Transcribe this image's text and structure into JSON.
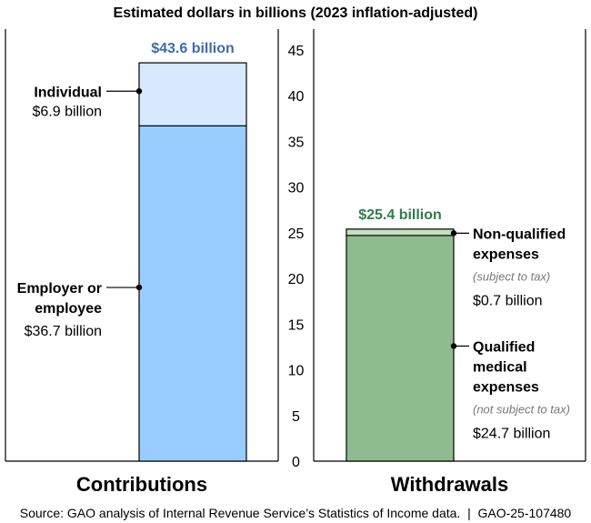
{
  "chart_data": {
    "type": "bar",
    "stacked": true,
    "title": "Estimated dollars in billions (2023 inflation-adjusted)",
    "ylim": [
      0,
      45
    ],
    "yticks": [
      0,
      5,
      10,
      15,
      20,
      25,
      30,
      35,
      40,
      45
    ],
    "categories": [
      "Contributions",
      "Withdrawals"
    ],
    "bars": [
      {
        "category": "Contributions",
        "total": 43.6,
        "total_label": "$43.6 billion",
        "total_color": "#3d6da8",
        "segments": [
          {
            "name_lines": [
              "Employer or",
              "employee"
            ],
            "note": "",
            "value": 36.7,
            "value_label": "$36.7 billion",
            "color": "#99ccff"
          },
          {
            "name_lines": [
              "Individual"
            ],
            "note": "",
            "value": 6.9,
            "value_label": "$6.9 billion",
            "color": "#d6e9ff"
          }
        ]
      },
      {
        "category": "Withdrawals",
        "total": 25.4,
        "total_label": "$25.4 billion",
        "total_color": "#2f7d4a",
        "segments": [
          {
            "name_lines": [
              "Qualified",
              "medical",
              "expenses"
            ],
            "note": "(not subject to tax)",
            "value": 24.7,
            "value_label": "$24.7 billion",
            "color": "#8fbc8f"
          },
          {
            "name_lines": [
              "Non-qualified",
              "expenses"
            ],
            "note": "(subject to tax)",
            "value": 0.7,
            "value_label": "$0.7 billion",
            "color": "#c5dfc0"
          }
        ]
      }
    ]
  },
  "source": "Source: GAO analysis of Internal Revenue Service’s Statistics of Income data.  |  GAO-25-107480"
}
